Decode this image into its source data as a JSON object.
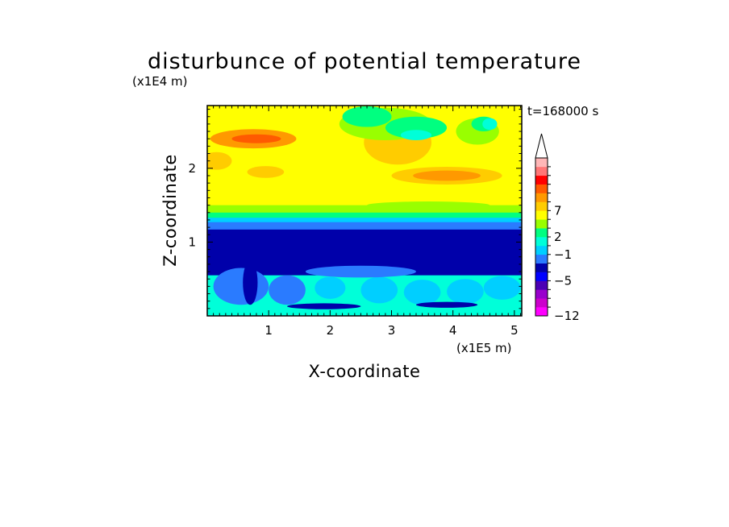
{
  "chart_data": {
    "type": "heatmap",
    "title": "disturbunce of potential temperature",
    "y_unit_label": "(x1E4 m)",
    "x_unit_label": "(x1E5 m)",
    "xlabel": "X-coordinate",
    "ylabel": "Z-coordinate",
    "time_label": "t=168000 s",
    "xlim": [
      0,
      5.12
    ],
    "ylim": [
      0,
      2.85
    ],
    "x_ticks": [
      {
        "value": 1,
        "label": "1"
      },
      {
        "value": 2,
        "label": "2"
      },
      {
        "value": 3,
        "label": "3"
      },
      {
        "value": 4,
        "label": "4"
      },
      {
        "value": 5,
        "label": "5"
      }
    ],
    "y_ticks": [
      {
        "value": 1,
        "label": "1"
      },
      {
        "value": 2,
        "label": "2"
      }
    ],
    "colorbar": {
      "colors": [
        "#ff00ff",
        "#cc00cc",
        "#9900cc",
        "#4b00b4",
        "#0000ff",
        "#0000aa",
        "#2a7bff",
        "#00cfff",
        "#00ffd9",
        "#00ff80",
        "#99ff00",
        "#ffff00",
        "#ffcc00",
        "#ff9900",
        "#ff5a00",
        "#ff0000",
        "#ff7777",
        "#ffb7b7"
      ],
      "tick_labels": [
        {
          "label": "-12",
          "edge": 0
        },
        {
          "label": "-5",
          "edge": 4
        },
        {
          "label": "-1",
          "edge": 7
        },
        {
          "label": "2",
          "edge": 9
        },
        {
          "label": "7",
          "edge": 12
        }
      ]
    },
    "bands": [
      {
        "z0": 2.65,
        "z1": 2.85,
        "value_color": "#ffff00"
      },
      {
        "z0": 1.75,
        "z1": 2.65,
        "value_color": "#ffff00"
      },
      {
        "z0": 1.5,
        "z1": 1.75,
        "value_color": "#ffff00"
      },
      {
        "z0": 1.4,
        "z1": 1.5,
        "value_color": "#99ff00"
      },
      {
        "z0": 1.33,
        "z1": 1.4,
        "value_color": "#00ff80"
      },
      {
        "z0": 1.27,
        "z1": 1.33,
        "value_color": "#00cfff"
      },
      {
        "z0": 1.17,
        "z1": 1.27,
        "value_color": "#2a7bff"
      },
      {
        "z0": 0.93,
        "z1": 1.17,
        "value_color": "#0000aa"
      },
      {
        "z0": 0.55,
        "z1": 0.93,
        "value_color": "#0000aa"
      },
      {
        "z0": 0.18,
        "z1": 0.55,
        "value_color": "#00ffd9"
      },
      {
        "z0": 0.0,
        "z1": 0.18,
        "value_color": "#00ffd9"
      }
    ],
    "blobs": [
      {
        "x": 0.75,
        "z": 2.4,
        "rx": 0.7,
        "rz": 0.13,
        "color": "#ff9900"
      },
      {
        "x": 0.8,
        "z": 2.4,
        "rx": 0.4,
        "rz": 0.06,
        "color": "#ff5a00"
      },
      {
        "x": 0.15,
        "z": 2.1,
        "rx": 0.25,
        "rz": 0.12,
        "color": "#ffcc00"
      },
      {
        "x": 0.95,
        "z": 1.95,
        "rx": 0.3,
        "rz": 0.08,
        "color": "#ffcc00"
      },
      {
        "x": 3.9,
        "z": 1.9,
        "rx": 0.9,
        "rz": 0.12,
        "color": "#ffcc00"
      },
      {
        "x": 3.9,
        "z": 1.9,
        "rx": 0.55,
        "rz": 0.07,
        "color": "#ff9900"
      },
      {
        "x": 3.1,
        "z": 2.35,
        "rx": 0.55,
        "rz": 0.3,
        "color": "#ffcc00"
      },
      {
        "x": 2.9,
        "z": 2.6,
        "rx": 0.75,
        "rz": 0.22,
        "color": "#99ff00"
      },
      {
        "x": 3.4,
        "z": 2.55,
        "rx": 0.5,
        "rz": 0.15,
        "color": "#00ff80"
      },
      {
        "x": 3.4,
        "z": 2.45,
        "rx": 0.25,
        "rz": 0.07,
        "color": "#00ffd9"
      },
      {
        "x": 4.4,
        "z": 2.5,
        "rx": 0.35,
        "rz": 0.18,
        "color": "#99ff00"
      },
      {
        "x": 4.5,
        "z": 2.6,
        "rx": 0.2,
        "rz": 0.1,
        "color": "#00ff80"
      },
      {
        "x": 4.6,
        "z": 2.6,
        "rx": 0.12,
        "rz": 0.08,
        "color": "#00ffd9"
      },
      {
        "x": 2.6,
        "z": 2.7,
        "rx": 0.4,
        "rz": 0.14,
        "color": "#00ff80"
      },
      {
        "x": 3.6,
        "z": 1.5,
        "rx": 1.0,
        "rz": 0.05,
        "color": "#99ff00"
      },
      {
        "x": 0.55,
        "z": 0.4,
        "rx": 0.45,
        "rz": 0.25,
        "color": "#2a7bff"
      },
      {
        "x": 1.3,
        "z": 0.35,
        "rx": 0.3,
        "rz": 0.2,
        "color": "#2a7bff"
      },
      {
        "x": 2.0,
        "z": 0.38,
        "rx": 0.25,
        "rz": 0.15,
        "color": "#00cfff"
      },
      {
        "x": 2.8,
        "z": 0.35,
        "rx": 0.3,
        "rz": 0.18,
        "color": "#00cfff"
      },
      {
        "x": 3.5,
        "z": 0.32,
        "rx": 0.3,
        "rz": 0.17,
        "color": "#00cfff"
      },
      {
        "x": 4.2,
        "z": 0.33,
        "rx": 0.3,
        "rz": 0.17,
        "color": "#00cfff"
      },
      {
        "x": 4.8,
        "z": 0.38,
        "rx": 0.3,
        "rz": 0.16,
        "color": "#00cfff"
      },
      {
        "x": 0.7,
        "z": 0.45,
        "rx": 0.12,
        "rz": 0.3,
        "color": "#0000aa"
      },
      {
        "x": 3.9,
        "z": 0.15,
        "rx": 0.5,
        "rz": 0.04,
        "color": "#0000aa"
      },
      {
        "x": 1.9,
        "z": 0.13,
        "rx": 0.6,
        "rz": 0.04,
        "color": "#0000aa"
      },
      {
        "x": 2.5,
        "z": 0.6,
        "rx": 0.9,
        "rz": 0.08,
        "color": "#2a7bff"
      }
    ]
  }
}
